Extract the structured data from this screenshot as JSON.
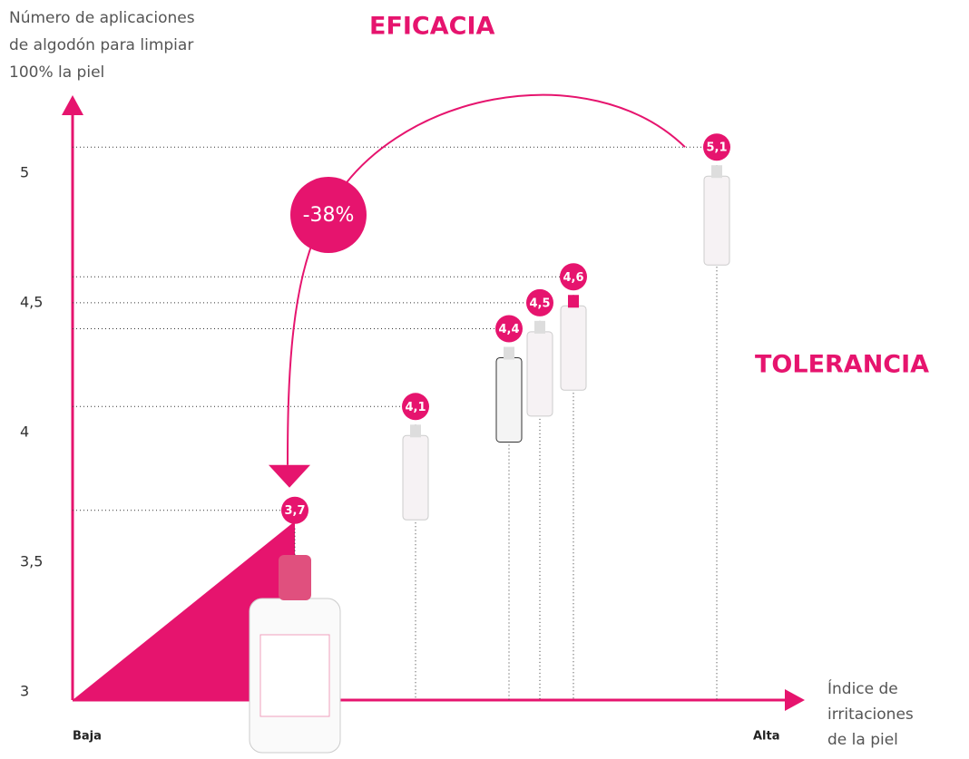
{
  "chart_data": {
    "type": "scatter",
    "title": "EFICACIA",
    "ylabel_lines": [
      "Número de aplicaciones",
      "de algodón para limpiar",
      "100% la piel"
    ],
    "xlabel_lines": [
      "Índice de",
      "irritaciones",
      "de la piel"
    ],
    "x_start_label": "Baja",
    "x_end_label": "Alta",
    "annotations": [
      "TOLERANCIA",
      "-38%"
    ],
    "categories": [
      null,
      null,
      null,
      null,
      null,
      null
    ],
    "values": [
      3.7,
      4.1,
      4.4,
      4.5,
      4.6,
      5.1
    ],
    "value_labels": [
      "3,7",
      "4,1",
      "4,4",
      "4,5",
      "4,6",
      "5,1"
    ],
    "color": "#e6146e",
    "ylim": [
      3,
      5.3
    ],
    "yticks": [
      3,
      {
        "value": 3.5,
        "label": "3,5"
      },
      4,
      {
        "value": 4.5,
        "label": "4,5"
      },
      5
    ]
  }
}
